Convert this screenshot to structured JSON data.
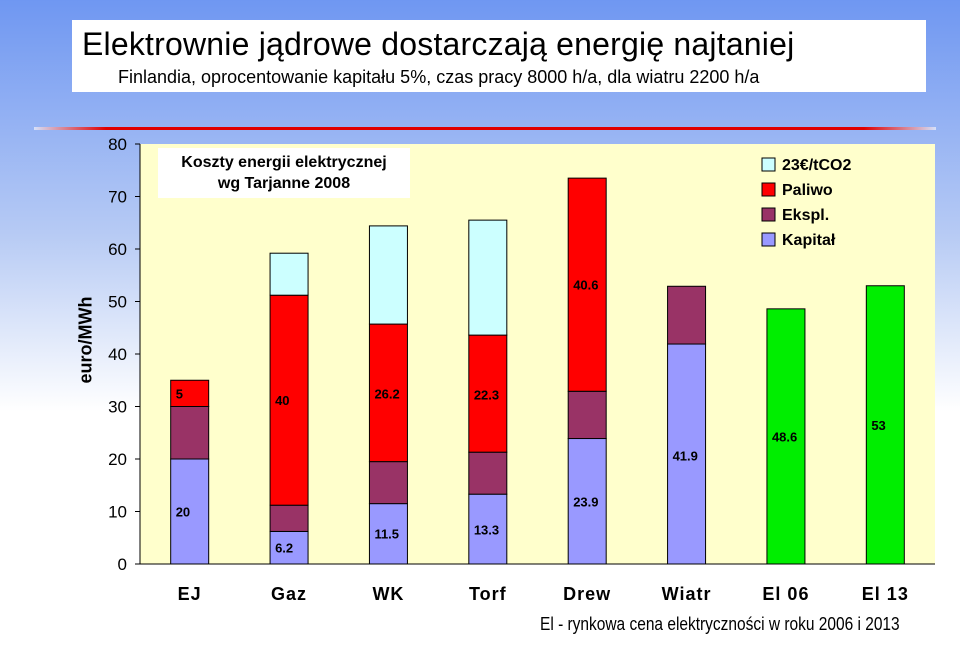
{
  "title": "Elektrownie jądrowe dostarczają energię najtaniej",
  "subtitle": "Finlandia, oprocentowanie kapitału 5%, czas pracy 8000 h/a, dla wiatru 2200 h/a",
  "footnote": "El - rynkowa cena elektryczności w roku 2006 i 2013",
  "colors": {
    "plot_bg": "#ffffcc",
    "kapital": "#9999ff",
    "ekspl": "#993366",
    "paliwo": "#ff0000",
    "co2": "#ccffff",
    "el": "#00ee00"
  },
  "chart_data": {
    "type": "bar",
    "stacked": true,
    "ylabel": "euro/MWh",
    "ylim": [
      0,
      80
    ],
    "yticks": [
      0,
      10,
      20,
      30,
      40,
      50,
      60,
      70,
      80
    ],
    "grid": false,
    "legend_position": "top-right",
    "annotation": [
      "Koszty energii elektrycznej",
      "wg Tarjanne 2008"
    ],
    "categories": [
      "EJ",
      "Gaz",
      "WK",
      "Torf",
      "Drew",
      "Wiatr",
      "El 06",
      "El 13"
    ],
    "series": [
      {
        "name": "Kapitał",
        "color_key": "kapital",
        "values": [
          20,
          6.2,
          11.5,
          13.3,
          23.9,
          41.9,
          null,
          null
        ]
      },
      {
        "name": "Ekspl.",
        "color_key": "ekspl",
        "values": [
          10,
          5,
          8,
          8,
          9,
          11,
          null,
          null
        ]
      },
      {
        "name": "Paliwo",
        "color_key": "paliwo",
        "values": [
          5,
          40,
          26.2,
          22.3,
          40.6,
          null,
          null,
          null
        ]
      },
      {
        "name": "23€/tCO2",
        "color_key": "co2",
        "values": [
          null,
          8,
          18.7,
          21.9,
          null,
          null,
          null,
          null
        ]
      },
      {
        "name": "El",
        "color_key": "el",
        "legend": false,
        "values": [
          null,
          null,
          null,
          null,
          null,
          null,
          48.6,
          53
        ]
      }
    ],
    "data_labels": [
      {
        "category": "EJ",
        "text": "20",
        "at": 10
      },
      {
        "category": "EJ",
        "text": "5",
        "at": 32.5
      },
      {
        "category": "Gaz",
        "text": "6.2",
        "at": 3.1
      },
      {
        "category": "Gaz",
        "text": "40",
        "at": 31.2
      },
      {
        "category": "WK",
        "text": "11.5",
        "at": 5.8
      },
      {
        "category": "WK",
        "text": "26.2",
        "at": 32.5
      },
      {
        "category": "Torf",
        "text": "13.3",
        "at": 6.6
      },
      {
        "category": "Torf",
        "text": "22.3",
        "at": 32.3
      },
      {
        "category": "Drew",
        "text": "23.9",
        "at": 11.9
      },
      {
        "category": "Drew",
        "text": "40.6",
        "at": 53.2
      },
      {
        "category": "Wiatr",
        "text": "41.9",
        "at": 20.7
      },
      {
        "category": "El 06",
        "text": "48.6",
        "at": 24.3
      },
      {
        "category": "El 13",
        "text": "53",
        "at": 26.5
      }
    ]
  }
}
